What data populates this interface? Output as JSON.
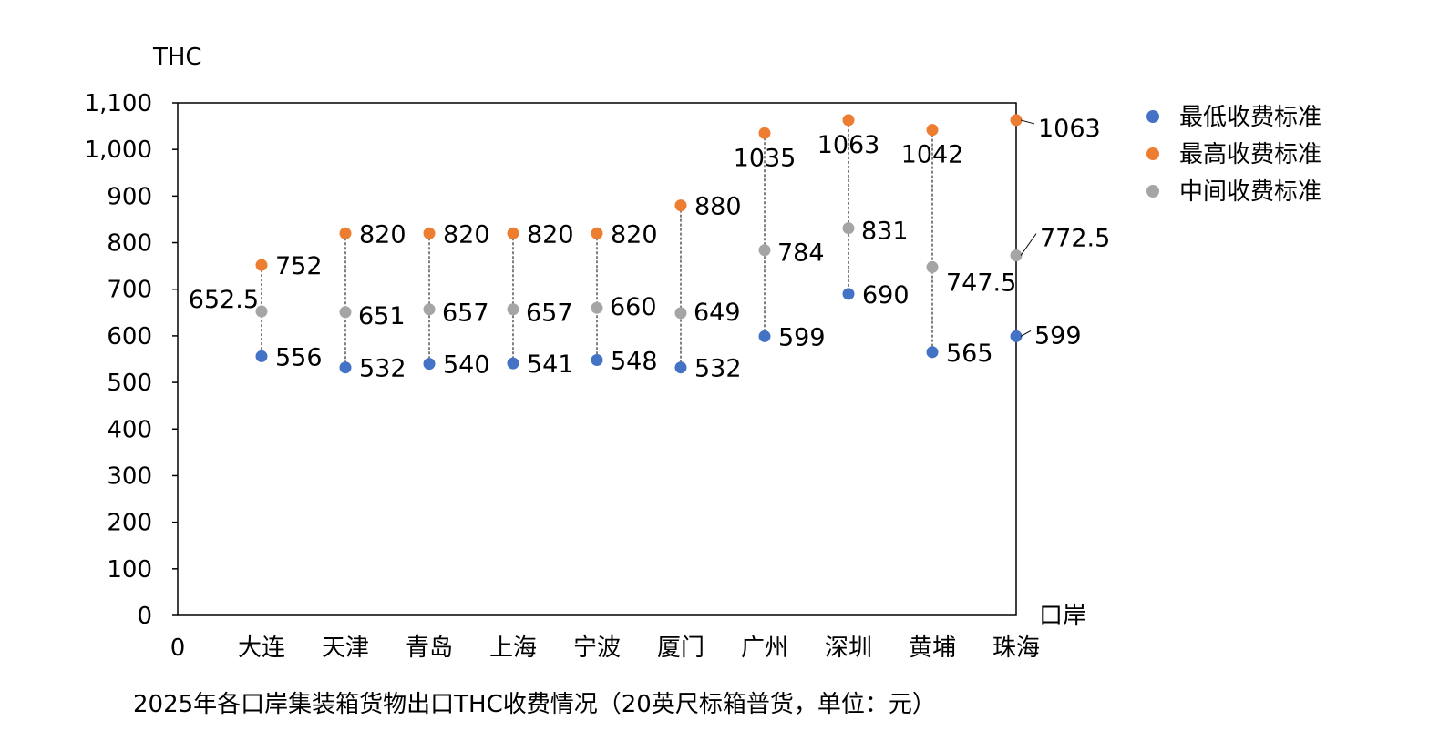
{
  "chart_data": {
    "type": "scatter",
    "title": "2025年各口岸集装箱货物出口THC收费情况（20英尺标箱普货，单位：元）",
    "ylabel": "THC",
    "xlabel": "口岸",
    "x_origin_label": "0",
    "ylim": [
      0,
      1100
    ],
    "ytick_step": 100,
    "yticks": [
      "0",
      "100",
      "200",
      "300",
      "400",
      "500",
      "600",
      "700",
      "800",
      "900",
      "1,000",
      "1,100"
    ],
    "categories": [
      "大连",
      "天津",
      "青岛",
      "上海",
      "宁波",
      "厦门",
      "广州",
      "深圳",
      "黄埔",
      "珠海"
    ],
    "grid": false,
    "legend_position": "right",
    "series": [
      {
        "name": "最低收费标准",
        "color": "#4472C4",
        "values": [
          556,
          532,
          540,
          541,
          548,
          532,
          599,
          690,
          565,
          599
        ],
        "labels": [
          "556",
          "532",
          "540",
          "541",
          "548",
          "532",
          "599",
          "690",
          "565",
          "599"
        ]
      },
      {
        "name": "最高收费标准",
        "color": "#ED7D31",
        "values": [
          752,
          820,
          820,
          820,
          820,
          880,
          1035,
          1063,
          1042,
          1063
        ],
        "labels": [
          "752",
          "820",
          "820",
          "820",
          "820",
          "880",
          "1035",
          "1063",
          "1042",
          "1063"
        ]
      },
      {
        "name": "中间收费标准",
        "color": "#A5A5A5",
        "values": [
          652.5,
          651,
          657,
          657,
          660,
          649,
          784,
          831,
          747.5,
          772.5
        ],
        "labels": [
          "652.5",
          "651",
          "657",
          "657",
          "660",
          "649",
          "784",
          "831",
          "747.5",
          "772.5"
        ]
      }
    ]
  }
}
